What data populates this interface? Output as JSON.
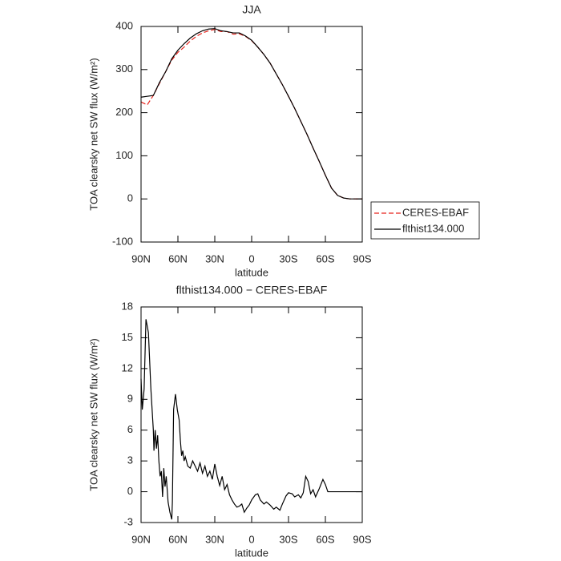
{
  "chart_data": [
    {
      "type": "line",
      "title": "JJA",
      "ylabel": "TOA clearsky net SW flux (W/m²)",
      "xlabel": "latitude",
      "x": [
        90,
        85,
        80,
        75,
        70,
        65,
        60,
        55,
        50,
        45,
        40,
        35,
        30,
        25,
        20,
        15,
        10,
        5,
        0,
        -5,
        -10,
        -15,
        -20,
        -25,
        -30,
        -35,
        -40,
        -45,
        -50,
        -55,
        -60,
        -65,
        -70,
        -75,
        -80,
        -85,
        -90
      ],
      "series": [
        {
          "name": "CERES-EBAF",
          "color": "#e8231c",
          "linestyle": "dashed",
          "values": [
            225,
            218,
            240,
            268,
            295,
            322,
            340,
            352,
            366,
            377,
            385,
            390,
            393,
            388,
            388,
            382,
            383,
            377,
            367,
            352,
            335,
            315,
            290,
            265,
            238,
            210,
            180,
            150,
            118,
            87,
            55,
            25,
            8,
            2,
            0,
            0,
            0
          ]
        },
        {
          "name": "flthist134.000",
          "color": "#000000",
          "linestyle": "solid",
          "values": [
            236,
            238,
            240,
            270,
            295,
            325,
            345,
            360,
            373,
            383,
            390,
            394,
            395,
            390,
            388,
            385,
            385,
            378,
            368,
            352,
            335,
            315,
            290,
            265,
            238,
            210,
            180,
            150,
            118,
            87,
            55,
            25,
            8,
            2,
            0,
            0,
            0
          ]
        }
      ],
      "xlim": [
        90,
        -90
      ],
      "ylim": [
        -100,
        400
      ],
      "xticks": [
        {
          "value": 90,
          "label": "90N"
        },
        {
          "value": 60,
          "label": "60N"
        },
        {
          "value": 30,
          "label": "30N"
        },
        0,
        {
          "value": -30,
          "label": "30S"
        },
        {
          "value": -60,
          "label": "60S"
        },
        {
          "value": -90,
          "label": "90S"
        }
      ],
      "yticks": [
        -100,
        0,
        100,
        200,
        300,
        400
      ],
      "legend": "outside right"
    },
    {
      "type": "line",
      "title": "flthist134.000 − CERES-EBAF",
      "ylabel": "TOA clearsky net SW flux (W/m²)",
      "xlabel": "latitude",
      "x": [
        90,
        89,
        87.5,
        86,
        84,
        82,
        80,
        79.5,
        78.5,
        77.5,
        76.5,
        75.5,
        74.5,
        73.5,
        72.5,
        71.5,
        70.5,
        69.5,
        68,
        66.5,
        65,
        64.5,
        63.5,
        62,
        60.5,
        59,
        58,
        57,
        56,
        55,
        54,
        52,
        50,
        48,
        46,
        44,
        42,
        40,
        38,
        36,
        34,
        32,
        30,
        28,
        26,
        24,
        22,
        20,
        18,
        16,
        14,
        12,
        10,
        8,
        6,
        4,
        2,
        0,
        -3,
        -5,
        -7,
        -10,
        -12,
        -15,
        -18,
        -20,
        -23,
        -25,
        -28,
        -30,
        -33,
        -35,
        -38,
        -40,
        -42,
        -44,
        -46,
        -48,
        -50,
        -52,
        -55,
        -58,
        -60,
        -62,
        -65,
        -90
      ],
      "series": [
        {
          "color": "#000000",
          "linestyle": "solid",
          "values": [
            11,
            8,
            10,
            16.8,
            15.5,
            10,
            6,
            4,
            6,
            4.2,
            5.5,
            3,
            1.5,
            2,
            -0.5,
            2.3,
            0.5,
            1.5,
            -1,
            -2,
            -2.7,
            -1,
            8,
            9.5,
            8,
            7,
            5,
            3.5,
            4,
            3,
            3.4,
            2.5,
            2.3,
            3,
            2.5,
            2,
            2.8,
            1.8,
            2.5,
            1.5,
            2,
            1.2,
            2.7,
            1.5,
            0.6,
            1.5,
            0.2,
            0.7,
            -0.3,
            -0.8,
            -1.2,
            -1.5,
            -1.4,
            -1.2,
            -2,
            -1.6,
            -1.3,
            -0.8,
            -0.3,
            -0.2,
            -0.8,
            -1.2,
            -1,
            -1.3,
            -1.7,
            -1.5,
            -1.8,
            -1.2,
            -0.4,
            -0.1,
            -0.2,
            -0.5,
            -0.3,
            -0.6,
            -0.1,
            1.5,
            1,
            -0.2,
            0.2,
            -0.5,
            0.3,
            1.2,
            0.7,
            0,
            0,
            0
          ]
        }
      ],
      "xlim": [
        90,
        -90
      ],
      "ylim": [
        -3,
        18
      ],
      "xticks": [
        {
          "value": 90,
          "label": "90N"
        },
        {
          "value": 60,
          "label": "60N"
        },
        {
          "value": 30,
          "label": "30N"
        },
        0,
        {
          "value": -30,
          "label": "30S"
        },
        {
          "value": -60,
          "label": "60S"
        },
        {
          "value": -90,
          "label": "90S"
        }
      ],
      "yticks": [
        -3,
        0,
        3,
        6,
        9,
        12,
        15,
        18
      ]
    }
  ]
}
